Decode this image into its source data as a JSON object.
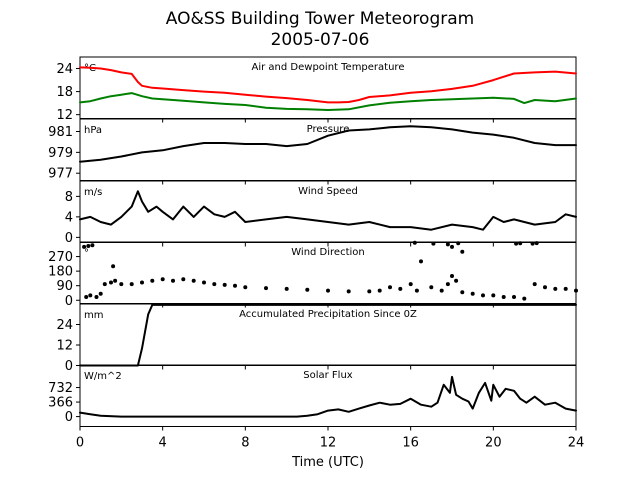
{
  "figure": {
    "title_line1": "AO&SS Building Tower Meteorogram",
    "title_line2": "2005-07-06",
    "xlabel": "Time (UTC)"
  },
  "chart_data": [
    {
      "type": "line",
      "title": "Air and Dewpoint Temperature",
      "unit": "°C",
      "xlim": [
        0,
        24
      ],
      "ylim": [
        11,
        27
      ],
      "yticks": [
        "12",
        "18",
        "24"
      ],
      "series": [
        {
          "color": "#ff0000",
          "x": [
            0,
            0.5,
            1,
            1.5,
            2,
            2.5,
            2.8,
            3,
            3.5,
            4,
            5,
            6,
            7,
            8,
            9,
            10,
            11,
            12,
            12.5,
            13,
            13.5,
            14,
            15,
            16,
            17,
            18,
            19,
            20,
            21,
            22,
            23,
            24
          ],
          "y": [
            24.3,
            24.2,
            24,
            23.6,
            23,
            22.6,
            20.5,
            19.5,
            19,
            18.8,
            18.4,
            18,
            17.7,
            17.2,
            16.7,
            16.3,
            15.8,
            15.2,
            15.2,
            15.3,
            15.8,
            16.6,
            17,
            17.7,
            18.1,
            18.7,
            19.5,
            21,
            22.7,
            23,
            23.2,
            22.7
          ]
        },
        {
          "color": "#008000",
          "x": [
            0,
            0.5,
            1,
            1.5,
            2,
            2.5,
            3,
            3.5,
            4,
            5,
            6,
            7,
            8,
            9,
            10,
            11,
            12,
            13,
            14,
            15,
            16,
            17,
            18,
            19,
            20,
            21,
            21.5,
            22,
            23,
            24
          ],
          "y": [
            15.2,
            15.5,
            16.2,
            16.8,
            17.2,
            17.6,
            16.8,
            16.2,
            16,
            15.6,
            15.2,
            14.8,
            14.5,
            13.8,
            13.5,
            13.4,
            13.2,
            13.4,
            14.4,
            15.1,
            15.5,
            15.8,
            16,
            16.2,
            16.4,
            16.1,
            15,
            15.8,
            15.5,
            16.2
          ]
        }
      ]
    },
    {
      "type": "line",
      "title": "Pressure",
      "unit": "hPa",
      "xlim": [
        0,
        24
      ],
      "ylim": [
        976.3,
        982.2
      ],
      "yticks": [
        "977",
        "979",
        "981"
      ],
      "series": [
        {
          "color": "#000000",
          "x": [
            0,
            1,
            2,
            3,
            4,
            5,
            6,
            7,
            8,
            9,
            10,
            11,
            12,
            13,
            14,
            15,
            16,
            17,
            18,
            19,
            20,
            21,
            22,
            23,
            24
          ],
          "y": [
            978.1,
            978.3,
            978.6,
            979,
            979.2,
            979.6,
            979.9,
            979.9,
            979.8,
            979.8,
            979.6,
            979.8,
            980.6,
            981.1,
            981.2,
            981.4,
            981.5,
            981.4,
            981.2,
            980.9,
            980.7,
            980.4,
            979.9,
            979.7,
            979.7
          ]
        }
      ]
    },
    {
      "type": "line",
      "title": "Wind Speed",
      "unit": "m/s",
      "xlim": [
        0,
        24
      ],
      "ylim": [
        -1,
        11
      ],
      "yticks": [
        "0",
        "4",
        "8"
      ],
      "series": [
        {
          "color": "#000000",
          "x": [
            0,
            0.5,
            1,
            1.5,
            2,
            2.5,
            2.8,
            3,
            3.3,
            3.7,
            4,
            4.5,
            5,
            5.5,
            6,
            6.5,
            7,
            7.5,
            8,
            9,
            10,
            11,
            12,
            13,
            14,
            15,
            16,
            17,
            18,
            19,
            19.5,
            20,
            20.5,
            21,
            22,
            23,
            23.5,
            24
          ],
          "y": [
            3.5,
            4,
            3,
            2.5,
            4,
            6,
            9,
            7,
            5,
            6,
            5,
            3.5,
            6,
            4,
            6,
            4.5,
            4,
            5,
            3,
            3.5,
            4,
            3.5,
            3,
            2.5,
            3,
            2,
            2,
            1.5,
            2.5,
            2,
            1.5,
            4,
            3,
            3.5,
            2.5,
            3,
            4.5,
            4
          ]
        }
      ]
    },
    {
      "type": "scatter",
      "title": "Wind Direction",
      "unit": "°",
      "xlim": [
        0,
        24
      ],
      "ylim": [
        -20,
        360
      ],
      "yticks": [
        "0",
        "90",
        "180",
        "270"
      ],
      "series": [
        {
          "color": "#000000",
          "x": [
            0.3,
            0.5,
            0.8,
            1,
            1.2,
            1.5,
            1.7,
            2,
            2.5,
            3,
            3.5,
            4,
            4.5,
            5,
            5.5,
            6,
            6.5,
            7,
            7.5,
            8,
            9,
            10,
            11,
            12,
            13,
            14,
            14.5,
            15,
            15.5,
            16,
            16.3,
            16.5,
            17,
            17.5,
            17.8,
            18,
            18.2,
            18.5,
            19,
            19.5,
            20,
            20.5,
            21,
            21.5,
            22,
            22.5,
            23,
            23.5,
            24
          ],
          "y": [
            20,
            30,
            20,
            40,
            100,
            110,
            120,
            100,
            100,
            110,
            120,
            130,
            120,
            130,
            120,
            110,
            100,
            95,
            90,
            80,
            75,
            70,
            65,
            60,
            55,
            55,
            60,
            80,
            70,
            100,
            60,
            240,
            80,
            60,
            100,
            150,
            120,
            50,
            40,
            30,
            30,
            20,
            20,
            10,
            100,
            80,
            70,
            70,
            60
          ]
        },
        {
          "color": "#000000",
          "x": [
            0.2,
            0.4,
            0.6,
            1.6,
            16.2,
            17.1,
            17.8,
            18,
            18.3,
            18.5,
            21.1,
            21.3,
            21.9,
            22.1
          ],
          "y": [
            330,
            335,
            340,
            210,
            355,
            350,
            345,
            330,
            352,
            300,
            350,
            352,
            350,
            353
          ]
        }
      ]
    },
    {
      "type": "line",
      "title": "Accumulated Precipitation Since 0Z",
      "unit": "mm",
      "xlim": [
        0,
        24
      ],
      "ylim": [
        0,
        36
      ],
      "yticks": [
        "0",
        "12",
        "24"
      ],
      "series": [
        {
          "color": "#000000",
          "x": [
            0,
            2.8,
            3,
            3.3,
            3.5,
            24
          ],
          "y": [
            0,
            0,
            10,
            30,
            35.5,
            35.5
          ]
        }
      ]
    },
    {
      "type": "line",
      "title": "Solar Flux",
      "unit": "W/m^2",
      "xlim": [
        0,
        24
      ],
      "ylim": [
        -250,
        1300
      ],
      "yticks": [
        "0",
        "366",
        "732"
      ],
      "series": [
        {
          "color": "#000000",
          "x": [
            0,
            0.5,
            1,
            2,
            3,
            4,
            5,
            6,
            7,
            8,
            9,
            10,
            10.5,
            11,
            11.5,
            12,
            12.5,
            13,
            13.5,
            14,
            14.5,
            15,
            15.5,
            16,
            16.5,
            17,
            17.3,
            17.6,
            17.9,
            18,
            18.2,
            18.5,
            18.8,
            19,
            19.3,
            19.6,
            19.9,
            20,
            20.3,
            20.6,
            21,
            21.3,
            21.6,
            22,
            22.5,
            23,
            23.5,
            24
          ],
          "y": [
            100,
            60,
            20,
            0,
            0,
            0,
            0,
            0,
            0,
            0,
            0,
            0,
            0,
            20,
            60,
            150,
            180,
            120,
            200,
            280,
            350,
            300,
            320,
            450,
            300,
            250,
            350,
            800,
            600,
            1000,
            550,
            450,
            380,
            200,
            600,
            850,
            400,
            800,
            500,
            700,
            650,
            450,
            350,
            500,
            300,
            350,
            200,
            150
          ]
        }
      ]
    }
  ]
}
